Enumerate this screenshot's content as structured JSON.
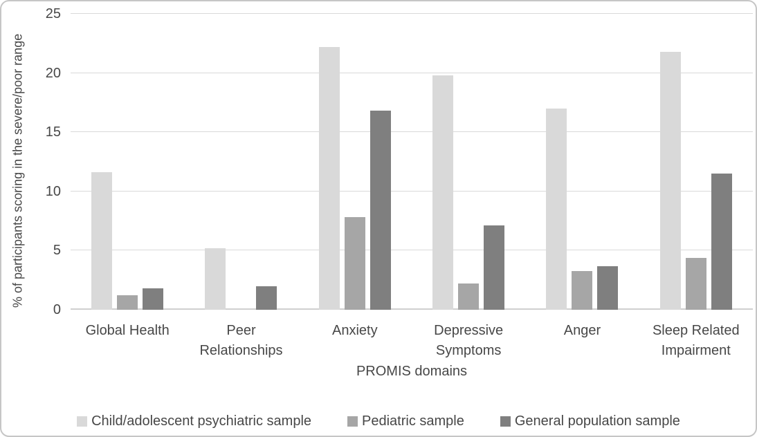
{
  "chart_data": {
    "type": "bar",
    "title": "",
    "xlabel": "PROMIS domains",
    "ylabel": "% of participants scoring in the severe/poor range",
    "categories": [
      "Global Health",
      "Peer Relationships",
      "Anxiety",
      "Depressive Symptoms",
      "Anger",
      "Sleep Related Impairment"
    ],
    "series": [
      {
        "name": "Child/adolescent psychiatric sample",
        "color": "#d9d9d9",
        "values": [
          11.6,
          5.2,
          22.2,
          19.8,
          17.0,
          21.8
        ]
      },
      {
        "name": "Pediatric sample",
        "color": "#a6a6a6",
        "values": [
          1.2,
          0,
          7.8,
          2.2,
          3.3,
          4.4
        ]
      },
      {
        "name": "General population sample",
        "color": "#7f7f7f",
        "values": [
          1.8,
          2.0,
          16.8,
          7.1,
          3.7,
          11.5
        ]
      }
    ],
    "ylim": [
      0,
      25
    ],
    "yticks": [
      0,
      5,
      10,
      15,
      20,
      25
    ],
    "grid": true,
    "legend_position": "bottom"
  },
  "colors": {
    "gridline": "#d9d9d9",
    "axis_line": "#cfcfcf",
    "text": "#474747",
    "frame_border": "#c6c6c6",
    "background": "#ffffff"
  }
}
